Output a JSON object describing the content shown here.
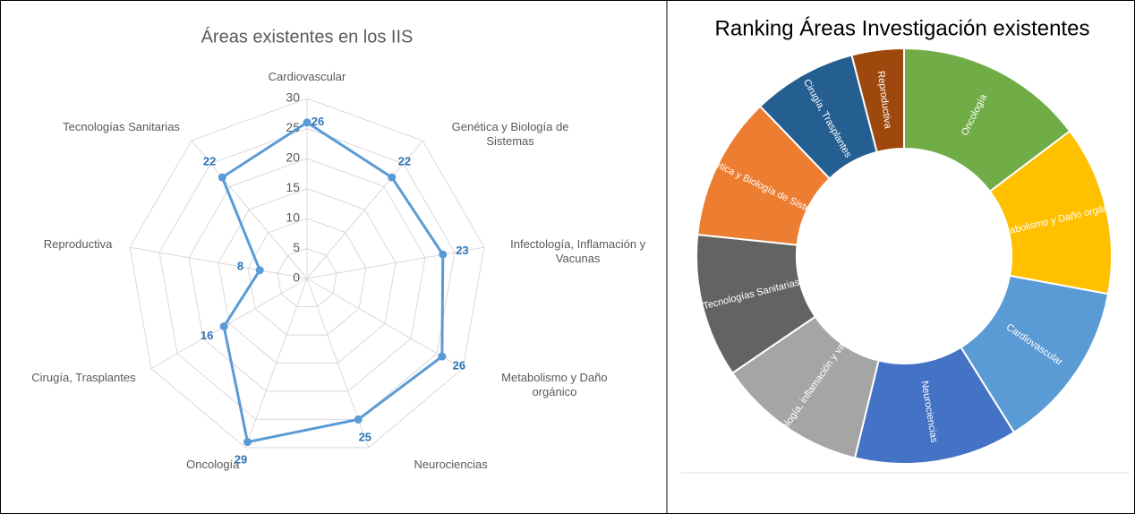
{
  "chart_data": [
    {
      "type": "radar",
      "title": "Áreas existentes en los IIS",
      "categories": [
        "Cardiovascular",
        "Genética y Biología de Sistemas",
        "Infectología, Inflamación  y Vacunas",
        "Metabolismo y Daño orgánico",
        "Neurociencias",
        "Oncología",
        "Cirugía, Trasplantes",
        "Reproductiva",
        "Tecnologías Sanitarias"
      ],
      "values": [
        26,
        22,
        23,
        26,
        25,
        29,
        16,
        8,
        22
      ],
      "color": "#5b9bd5",
      "rlim": [
        0,
        30
      ],
      "rticks": [
        0,
        5,
        10,
        15,
        20,
        25,
        30
      ],
      "grid": true
    },
    {
      "type": "donut",
      "title": "Ranking Áreas Investigación existentes",
      "categories": [
        "Oncología",
        "Metabolismo y Daño orgánico",
        "Cardiovascular",
        "Neurociencias",
        "Infectología, inflamación y vacunas",
        "Tecnologías Sanitarias",
        "Genética y Biología de Sistemas",
        "Cirugía, Trasplantes",
        "Reproductiva"
      ],
      "values": [
        29,
        26,
        26,
        25,
        23,
        22,
        22,
        16,
        8
      ],
      "colors": [
        "#70ad47",
        "#ffc000",
        "#5b9bd5",
        "#4472c4",
        "#a5a5a5",
        "#636363",
        "#ed7d31",
        "#255e91",
        "#9e480e"
      ]
    }
  ]
}
